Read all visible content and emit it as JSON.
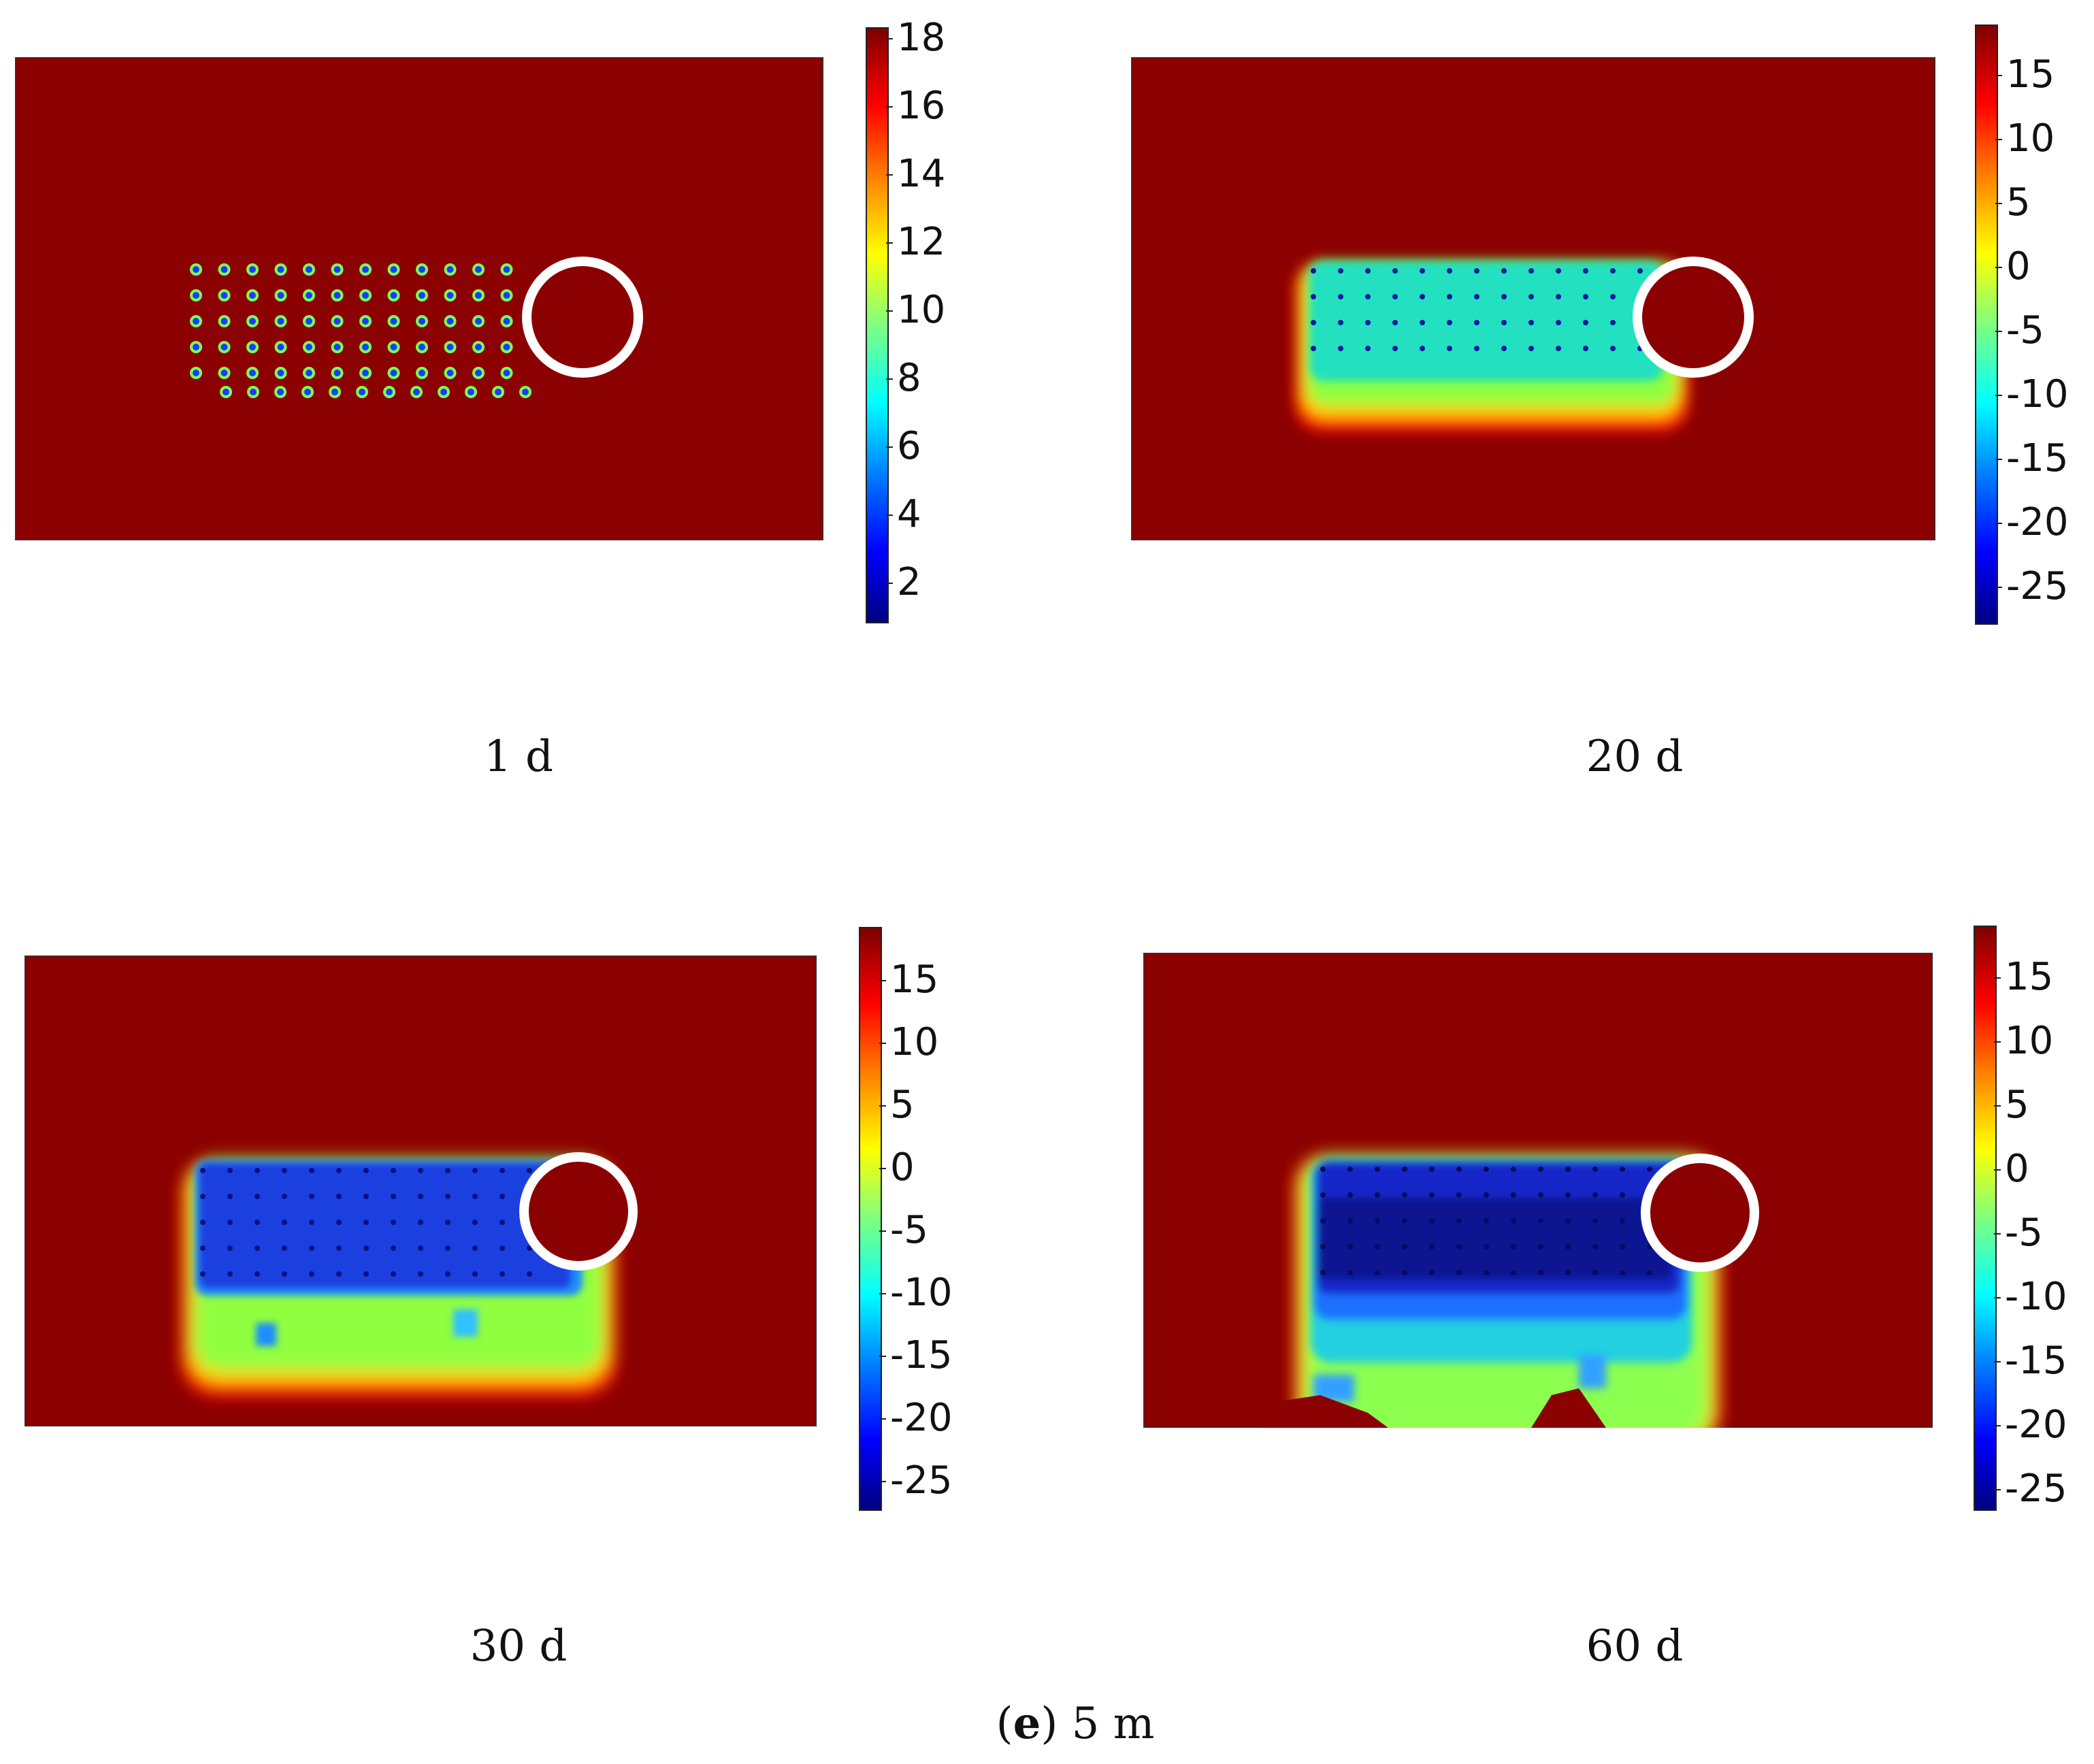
{
  "figure": {
    "subfigure_label": "e",
    "subfigure_title": "5 m"
  },
  "panels": [
    {
      "caption": "1 d",
      "stage": 0,
      "colorbar_ticks": [
        "18",
        "16",
        "14",
        "12",
        "10",
        "8",
        "6",
        "4",
        "2"
      ]
    },
    {
      "caption": "20 d",
      "stage": 1,
      "colorbar_ticks": [
        "15",
        "10",
        "5",
        "0",
        "-5",
        "-10",
        "-15",
        "-20",
        "-25"
      ]
    },
    {
      "caption": "30 d",
      "stage": 2,
      "colorbar_ticks": [
        "15",
        "10",
        "5",
        "0",
        "-5",
        "-10",
        "-15",
        "-20",
        "-25"
      ]
    },
    {
      "caption": "60 d",
      "stage": 3,
      "colorbar_ticks": [
        "15",
        "10",
        "5",
        "0",
        "-5",
        "-10",
        "-15",
        "-20",
        "-25"
      ]
    }
  ],
  "colors": {
    "background_field": "#8b0000",
    "frozen_core": "#1530d8",
    "frozen_deep": "#0a1aa0",
    "cold_mid": "#00b8f0",
    "transition": "#7fff3f",
    "warm_edge": "#ff2000",
    "tunnel_ring": "#ffffff"
  }
}
